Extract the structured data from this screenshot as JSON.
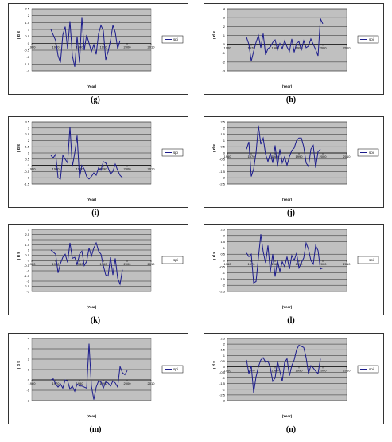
{
  "figure": {
    "panels": [
      {
        "label": "(g)",
        "ylabel": "s p i",
        "xlabel": "(Year)",
        "legend": "spi"
      },
      {
        "label": "(h)",
        "ylabel": "s p i",
        "xlabel": "(Year)",
        "legend": "spi"
      },
      {
        "label": "(i)",
        "ylabel": "s p i",
        "xlabel": "(Year)",
        "legend": "spi"
      },
      {
        "label": "(j)",
        "ylabel": "s p i",
        "xlabel": "(Year)",
        "legend": "spi"
      },
      {
        "label": "(k)",
        "ylabel": "s p i",
        "xlabel": "(Year)",
        "legend": "spi"
      },
      {
        "label": "(l)",
        "ylabel": "s p i",
        "xlabel": "(Year)",
        "legend": "spi"
      },
      {
        "label": "(m)",
        "ylabel": "s p i",
        "xlabel": "(Year)",
        "legend": "spi"
      },
      {
        "label": "(n)",
        "ylabel": "s p i",
        "xlabel": "(Year)",
        "legend": "spi"
      }
    ]
  },
  "colors": {
    "plot_bg": "#c0c0c0",
    "line": "#1c1c8c",
    "grid": "#000000",
    "frame": "#808080"
  },
  "chart_data": [
    {
      "type": "line",
      "panel": "(g)",
      "xlabel": "(Year)",
      "ylabel": "s p i",
      "xlim": [
        1960,
        2010
      ],
      "ylim": [
        -2,
        2.5
      ],
      "yticks": [
        -2,
        -1.5,
        -1,
        -0.5,
        0,
        0.5,
        1,
        1.5,
        2,
        2.5
      ],
      "xticks": [
        1960,
        1970,
        1980,
        1990,
        2000,
        2010
      ],
      "grid": true,
      "legend_position": "right",
      "series": [
        {
          "name": "spi",
          "x": [
            1968,
            1969,
            1970,
            1971,
            1972,
            1973,
            1974,
            1975,
            1976,
            1977,
            1978,
            1979,
            1980,
            1981,
            1982,
            1983,
            1984,
            1985,
            1986,
            1987,
            1988,
            1989,
            1990,
            1991,
            1992,
            1993,
            1994,
            1995,
            1996,
            1997,
            1998,
            1999,
            2000
          ],
          "y": [
            1.0,
            0.6,
            0.2,
            -0.9,
            -1.4,
            0.6,
            1.2,
            -0.4,
            1.6,
            -0.9,
            -1.7,
            0.5,
            -1.4,
            1.9,
            -0.5,
            0.6,
            0.0,
            -0.6,
            -0.1,
            -0.8,
            0.7,
            1.3,
            0.9,
            -1.2,
            -0.6,
            0.2,
            1.3,
            0.8,
            -0.4,
            0.2,
            null,
            null,
            null
          ]
        }
      ]
    },
    {
      "type": "line",
      "panel": "(h)",
      "xlabel": "(Year)",
      "ylabel": "s p i",
      "xlim": [
        1960,
        2010
      ],
      "ylim": [
        -3,
        4
      ],
      "yticks": [
        -3,
        -2,
        -1,
        0,
        1,
        2,
        3,
        4
      ],
      "xticks": [
        1960,
        1970,
        1980,
        1990,
        2000,
        2010
      ],
      "grid": true,
      "legend_position": "right",
      "series": [
        {
          "name": "spi",
          "x": [
            1968,
            1969,
            1970,
            1971,
            1972,
            1973,
            1974,
            1975,
            1976,
            1977,
            1978,
            1979,
            1980,
            1981,
            1982,
            1983,
            1984,
            1985,
            1986,
            1987,
            1988,
            1989,
            1990,
            1991,
            1992,
            1993,
            1994,
            1995,
            1996,
            1997,
            1998,
            1999,
            2000
          ],
          "y": [
            0.8,
            0.0,
            -1.9,
            -0.8,
            0.2,
            1.0,
            -0.4,
            1.2,
            -1.2,
            -0.5,
            -0.3,
            0.2,
            0.5,
            -0.6,
            0.1,
            -0.5,
            0.4,
            -0.3,
            -0.8,
            0.6,
            -0.9,
            0.1,
            0.3,
            -0.7,
            0.4,
            -0.4,
            -0.2,
            0.6,
            0.0,
            -0.6,
            -1.3,
            2.9,
            2.3
          ]
        }
      ]
    },
    {
      "type": "line",
      "panel": "(i)",
      "xlabel": "(Year)",
      "ylabel": "s p i",
      "xlim": [
        1960,
        2010
      ],
      "ylim": [
        -1.5,
        3.5
      ],
      "yticks": [
        -1.5,
        -1,
        -0.5,
        0,
        0.5,
        1,
        1.5,
        2,
        2.5,
        3,
        3.5
      ],
      "xticks": [
        1960,
        1970,
        1980,
        1990,
        2000,
        2010
      ],
      "grid": true,
      "legend_position": "right",
      "series": [
        {
          "name": "spi",
          "x": [
            1968,
            1969,
            1970,
            1971,
            1972,
            1973,
            1974,
            1975,
            1976,
            1977,
            1978,
            1979,
            1980,
            1981,
            1982,
            1983,
            1984,
            1985,
            1986,
            1987,
            1988,
            1989,
            1990,
            1991,
            1992,
            1993,
            1994,
            1995,
            1996,
            1997,
            1998,
            1999,
            2000
          ],
          "y": [
            0.8,
            0.6,
            0.9,
            -1.0,
            -1.1,
            0.8,
            0.5,
            0.2,
            3.1,
            -0.1,
            1.0,
            2.4,
            -1.0,
            0.0,
            -0.3,
            -0.9,
            -1.1,
            -0.9,
            -0.6,
            -0.8,
            -0.2,
            -0.4,
            0.3,
            0.2,
            -0.2,
            -0.7,
            -0.5,
            0.1,
            -0.4,
            -0.8,
            -1.0,
            null,
            null
          ]
        }
      ]
    },
    {
      "type": "line",
      "panel": "(j)",
      "xlabel": "(Year)",
      "ylabel": "s p i",
      "xlim": [
        1960,
        2010
      ],
      "ylim": [
        -2.5,
        2.5
      ],
      "yticks": [
        -2.5,
        -2,
        -1.5,
        -1,
        -0.5,
        0,
        0.5,
        1,
        1.5,
        2,
        2.5
      ],
      "xticks": [
        1960,
        1970,
        1980,
        1990,
        2000,
        2010
      ],
      "grid": true,
      "legend_position": "right",
      "series": [
        {
          "name": "spi",
          "x": [
            1968,
            1969,
            1970,
            1971,
            1972,
            1973,
            1974,
            1975,
            1976,
            1977,
            1978,
            1979,
            1980,
            1981,
            1982,
            1983,
            1984,
            1985,
            1986,
            1987,
            1988,
            1989,
            1990,
            1991,
            1992,
            1993,
            1994,
            1995,
            1996,
            1997,
            1998,
            1999,
            2000
          ],
          "y": [
            0.3,
            0.9,
            -1.9,
            -1.3,
            0.0,
            2.2,
            0.7,
            1.2,
            -0.1,
            -0.7,
            0.0,
            -0.8,
            0.6,
            -1.1,
            0.3,
            -0.8,
            -0.3,
            -1.0,
            -0.3,
            0.2,
            0.4,
            1.0,
            1.2,
            1.2,
            0.5,
            -0.8,
            -1.1,
            0.3,
            0.6,
            -1.2,
            0.1,
            0.3,
            null
          ]
        }
      ]
    },
    {
      "type": "line",
      "panel": "(k)",
      "xlabel": "(Year)",
      "ylabel": "s p i",
      "xlim": [
        1960,
        2010
      ],
      "ylim": [
        -3,
        3
      ],
      "yticks": [
        -3,
        -2.5,
        -2,
        -1.5,
        -1,
        -0.5,
        0,
        0.5,
        1,
        1.5,
        2,
        2.5,
        3
      ],
      "xticks": [
        1960,
        1970,
        1980,
        1990,
        2000,
        2010
      ],
      "grid": true,
      "legend_position": "right",
      "series": [
        {
          "name": "spi",
          "x": [
            1968,
            1969,
            1970,
            1971,
            1972,
            1973,
            1974,
            1975,
            1976,
            1977,
            1978,
            1979,
            1980,
            1981,
            1982,
            1983,
            1984,
            1985,
            1986,
            1987,
            1988,
            1989,
            1990,
            1991,
            1992,
            1993,
            1994,
            1995,
            1996,
            1997,
            1998,
            1999,
            2000
          ],
          "y": [
            1.0,
            0.8,
            0.6,
            -1.2,
            -0.3,
            0.3,
            0.6,
            -0.2,
            1.7,
            0.2,
            0.3,
            -0.4,
            0.6,
            0.9,
            -0.5,
            -0.1,
            1.2,
            0.4,
            1.2,
            1.7,
            0.9,
            0.6,
            -0.5,
            -1.4,
            -1.5,
            0.3,
            -1.4,
            0.2,
            -1.7,
            -2.3,
            -0.9,
            null,
            null
          ]
        }
      ]
    },
    {
      "type": "line",
      "panel": "(l)",
      "xlabel": "(Year)",
      "ylabel": "s p i",
      "xlim": [
        1960,
        2010
      ],
      "ylim": [
        -2.5,
        2.5
      ],
      "yticks": [
        -2.5,
        -2,
        -1.5,
        -1,
        -0.5,
        0,
        0.5,
        1,
        1.5,
        2,
        2.5
      ],
      "xticks": [
        1960,
        1970,
        1980,
        1990,
        2000,
        2010
      ],
      "grid": true,
      "legend_position": "right",
      "series": [
        {
          "name": "spi",
          "x": [
            1968,
            1969,
            1970,
            1971,
            1972,
            1973,
            1974,
            1975,
            1976,
            1977,
            1978,
            1979,
            1980,
            1981,
            1982,
            1983,
            1984,
            1985,
            1986,
            1987,
            1988,
            1989,
            1990,
            1991,
            1992,
            1993,
            1994,
            1995,
            1996,
            1997,
            1998,
            1999,
            2000
          ],
          "y": [
            0.6,
            0.3,
            0.5,
            -1.8,
            -1.7,
            0.2,
            2.1,
            0.7,
            -0.2,
            1.2,
            -0.9,
            0.5,
            -1.3,
            0.0,
            -0.9,
            -0.1,
            -0.5,
            0.3,
            -0.7,
            0.4,
            0.0,
            0.6,
            -0.6,
            -0.2,
            0.2,
            1.4,
            0.9,
            0.0,
            -0.3,
            1.2,
            0.8,
            -0.7,
            -0.6
          ]
        }
      ]
    },
    {
      "type": "line",
      "panel": "(m)",
      "xlabel": "(Year)",
      "ylabel": "s p i",
      "xlim": [
        1960,
        2010
      ],
      "ylim": [
        -2,
        4
      ],
      "yticks": [
        -2,
        -1,
        0,
        1,
        2,
        3,
        4
      ],
      "xticks": [
        1960,
        1970,
        1980,
        1990,
        2000,
        2010
      ],
      "grid": true,
      "legend_position": "right",
      "series": [
        {
          "name": "spi",
          "x": [
            1968,
            1969,
            1970,
            1971,
            1972,
            1973,
            1974,
            1975,
            1976,
            1977,
            1978,
            1979,
            1980,
            1981,
            1982,
            1983,
            1984,
            1985,
            1986,
            1987,
            1988,
            1989,
            1990,
            1991,
            1992,
            1993,
            1994,
            1995,
            1996,
            1997,
            1998,
            1999,
            2000
          ],
          "y": [
            0.0,
            0.1,
            -0.4,
            -0.7,
            -0.4,
            -0.8,
            0.0,
            -0.1,
            -0.9,
            -0.6,
            -1.1,
            -0.4,
            -0.6,
            -0.6,
            -0.7,
            -0.8,
            3.5,
            -0.6,
            -1.9,
            -0.7,
            -0.1,
            -0.2,
            -0.8,
            -0.2,
            -0.3,
            -0.6,
            -0.1,
            -0.3,
            -0.7,
            1.3,
            0.7,
            0.5,
            0.9
          ]
        }
      ]
    },
    {
      "type": "line",
      "panel": "(n)",
      "xlabel": "(Year)",
      "ylabel": "s p i",
      "xlim": [
        1960,
        2010
      ],
      "ylim": [
        -3,
        2.5
      ],
      "yticks": [
        -3,
        -2.5,
        -2,
        -1.5,
        -1,
        -0.5,
        0,
        0.5,
        1,
        1.5,
        2,
        2.5
      ],
      "xticks": [
        1960,
        1970,
        1980,
        1990,
        2000,
        2010
      ],
      "grid": true,
      "legend_position": "right",
      "series": [
        {
          "name": "spi",
          "x": [
            1968,
            1969,
            1970,
            1971,
            1972,
            1973,
            1974,
            1975,
            1976,
            1977,
            1978,
            1979,
            1980,
            1981,
            1982,
            1983,
            1984,
            1985,
            1986,
            1987,
            1988,
            1989,
            1990,
            1991,
            1992,
            1993,
            1994,
            1995,
            1996,
            1997,
            1998,
            1999,
            2000
          ],
          "y": [
            0.6,
            -0.6,
            0.1,
            -2.3,
            -0.9,
            0.0,
            0.6,
            0.8,
            0.4,
            0.5,
            -0.1,
            -1.3,
            -1.0,
            0.5,
            -0.4,
            -1.3,
            0.4,
            0.7,
            -0.8,
            0.1,
            0.6,
            1.5,
            1.9,
            1.8,
            1.7,
            0.8,
            -0.6,
            0.1,
            -0.1,
            -0.4,
            -0.6,
            0.7,
            null
          ]
        }
      ]
    }
  ]
}
